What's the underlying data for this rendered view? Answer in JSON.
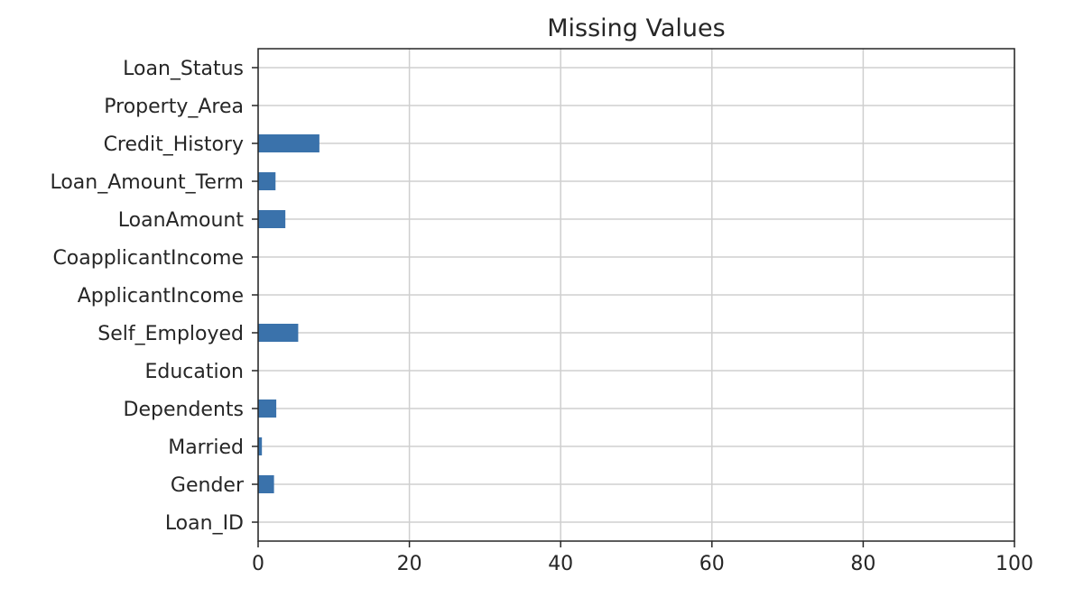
{
  "chart_data": {
    "type": "bar",
    "orientation": "horizontal",
    "title": "Missing Values",
    "xlabel": "",
    "ylabel": "",
    "categories": [
      "Loan_ID",
      "Gender",
      "Married",
      "Dependents",
      "Education",
      "Self_Employed",
      "ApplicantIncome",
      "CoapplicantIncome",
      "LoanAmount",
      "Loan_Amount_Term",
      "Credit_History",
      "Property_Area",
      "Loan_Status"
    ],
    "values": [
      0,
      2.1,
      0.5,
      2.4,
      0,
      5.3,
      0,
      0,
      3.6,
      2.3,
      8.1,
      0,
      0
    ],
    "xlim": [
      0,
      100
    ],
    "xticks": [
      "0",
      "20",
      "40",
      "60",
      "80",
      "100"
    ],
    "grid": true,
    "bar_color": "#3a72ab"
  }
}
